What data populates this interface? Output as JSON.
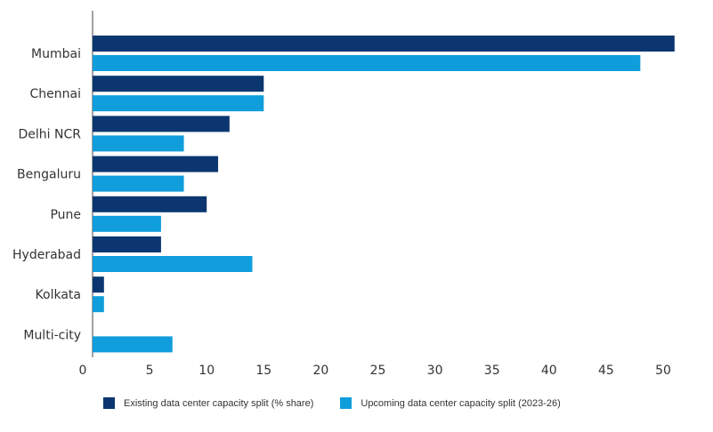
{
  "chart_data": {
    "type": "bar",
    "orientation": "horizontal",
    "categories": [
      "Mumbai",
      "Chennai",
      "Delhi NCR",
      "Bengaluru",
      "Pune",
      "Hyderabad",
      "Kolkata",
      "Multi-city"
    ],
    "series": [
      {
        "name": "Existing data center capacity split (% share)",
        "color": "#0b3670",
        "values": [
          51,
          15,
          12,
          11,
          10,
          6,
          1,
          0
        ]
      },
      {
        "name": "Upcoming data center capacity split (2023-26)",
        "color": "#0f9ddb",
        "values": [
          48,
          15,
          8,
          8,
          6,
          14,
          1,
          7
        ]
      }
    ],
    "xlim": [
      0,
      50
    ],
    "xticks": [
      "0",
      "5",
      "10",
      "15",
      "20",
      "25",
      "30",
      "35",
      "40",
      "45",
      "50"
    ],
    "grid": false,
    "legend_position": "bottom"
  }
}
